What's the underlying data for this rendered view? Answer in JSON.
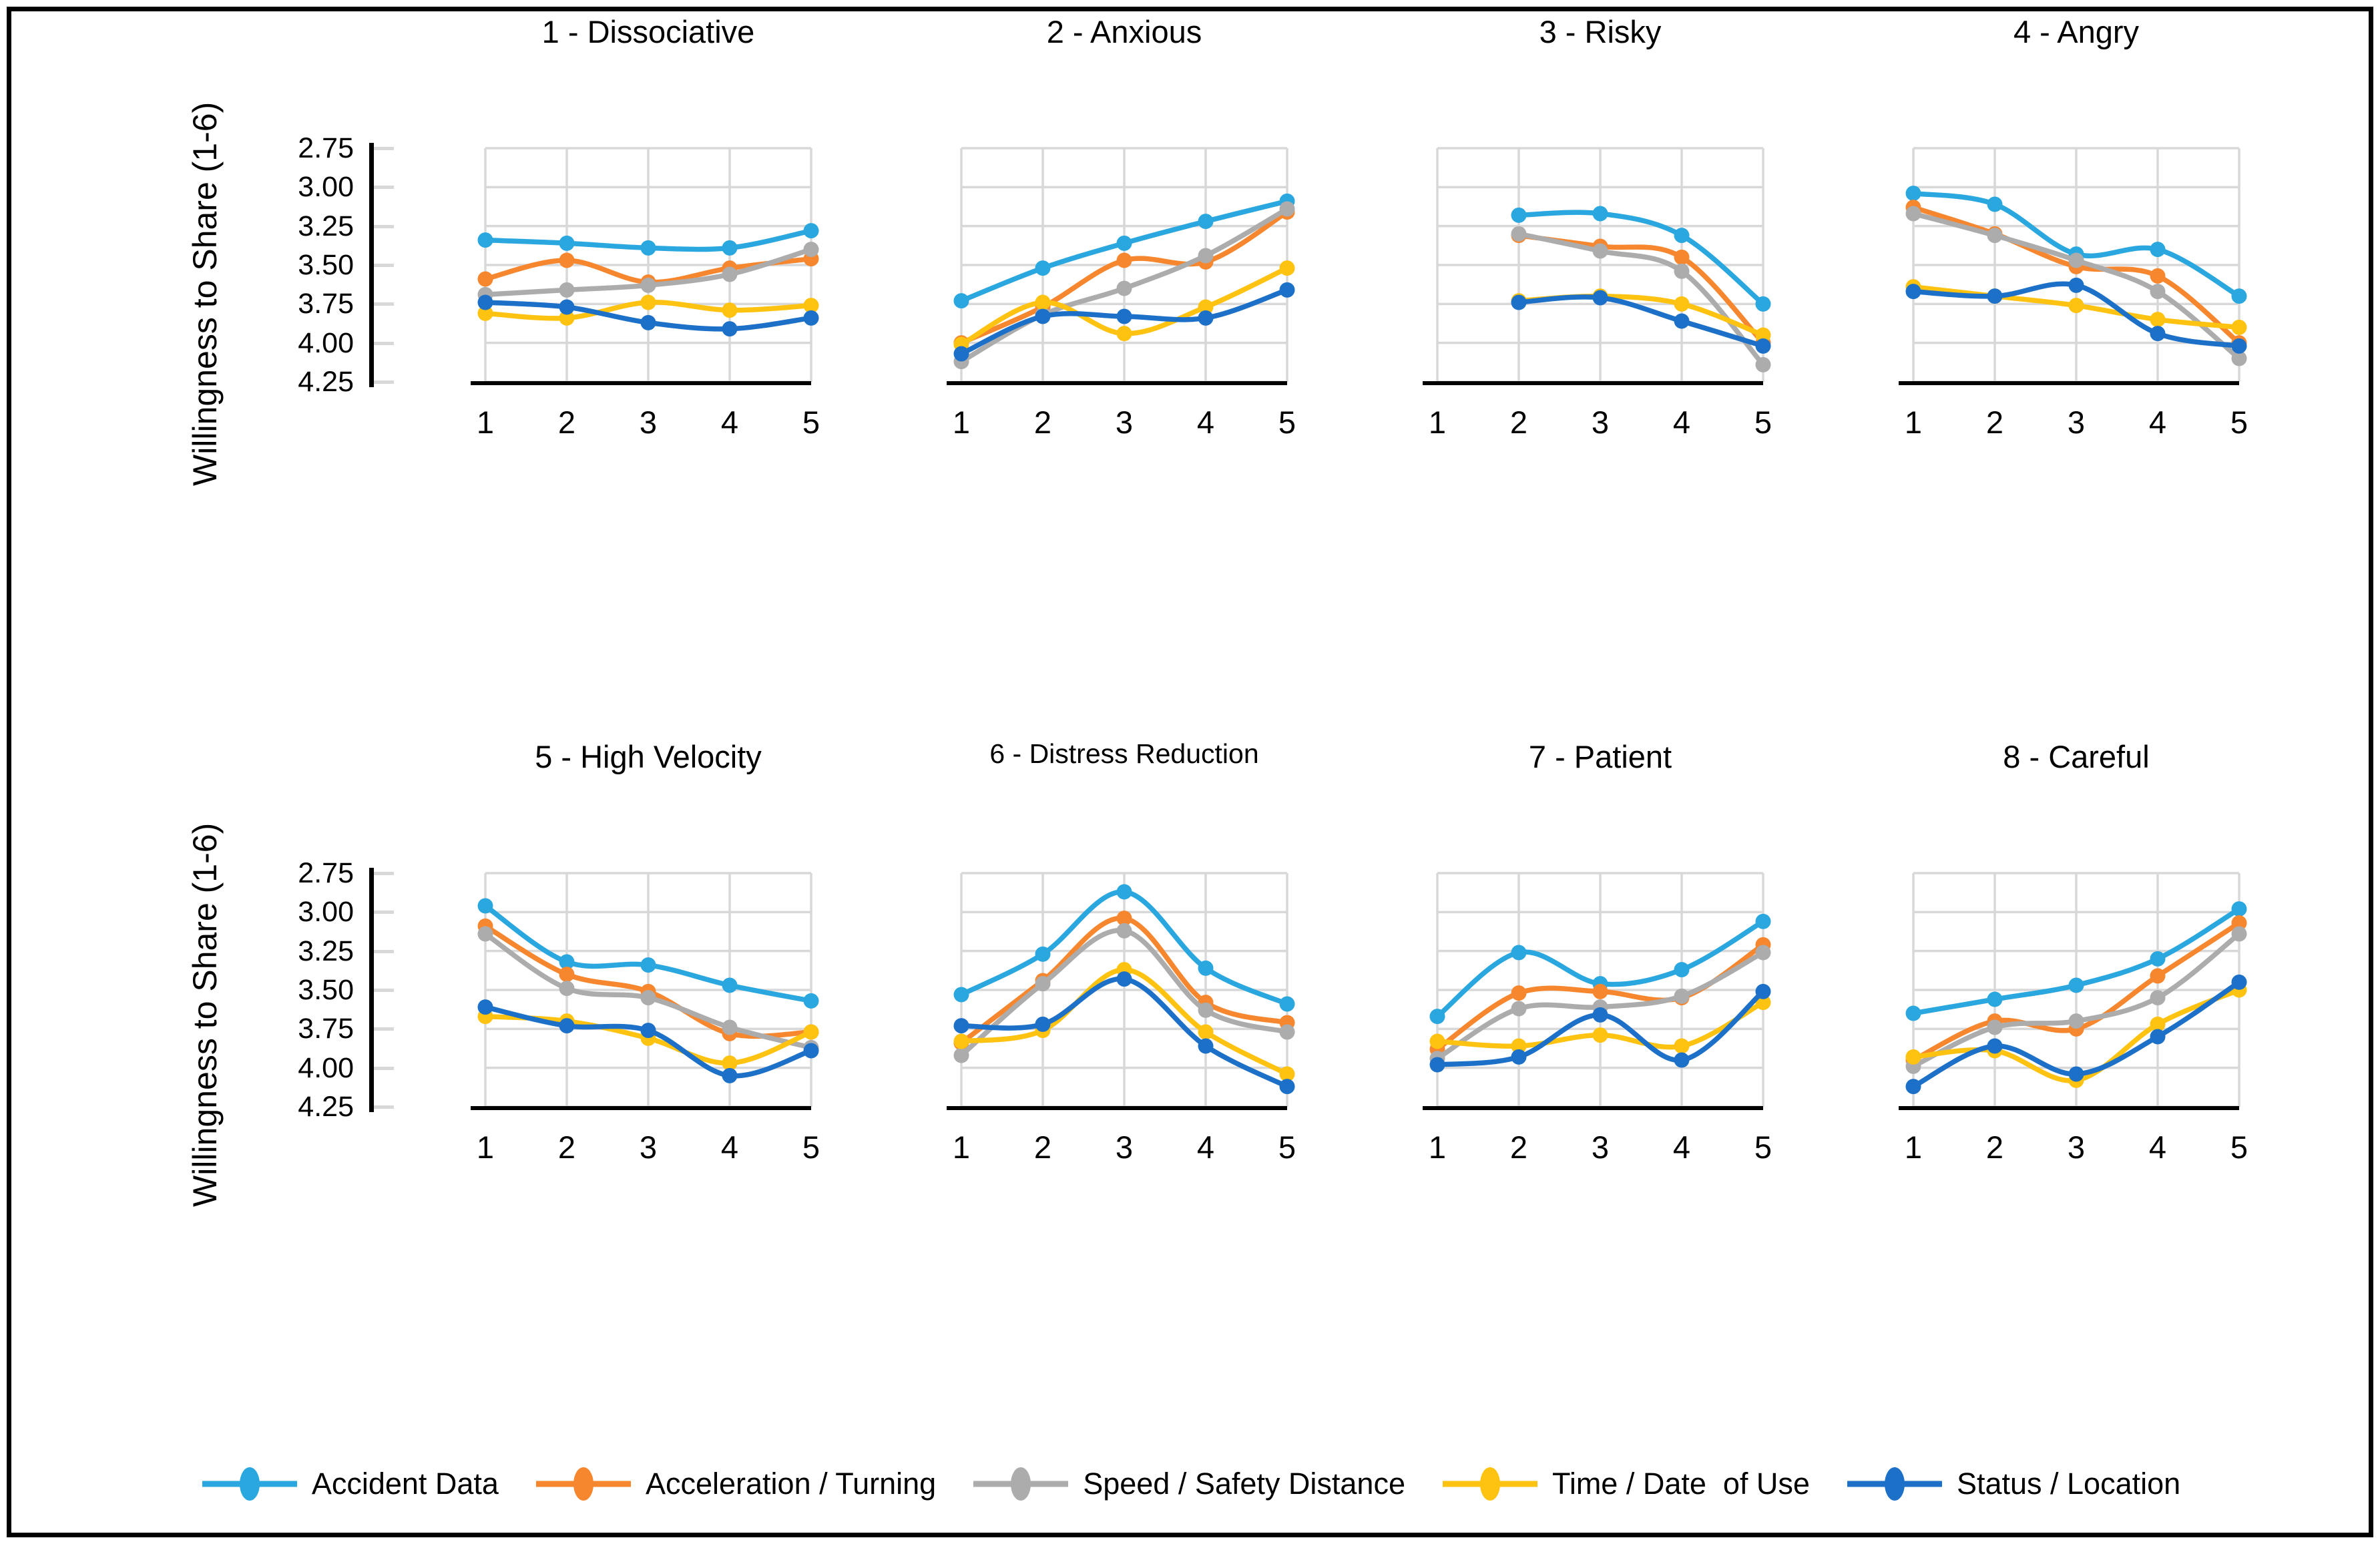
{
  "figure": {
    "border_color": "#000000",
    "background": "#ffffff"
  },
  "chart_data": {
    "type": "line",
    "categories": [
      "1",
      "2",
      "3",
      "4",
      "5"
    ],
    "ylabel": "Willingness to Share (1-6)",
    "ylim": [
      2.75,
      4.25
    ],
    "y_axis_reversed": true,
    "y_ticks": [
      "2.75",
      "3.00",
      "3.25",
      "3.50",
      "3.75",
      "4.00",
      "4.25"
    ],
    "grid": true,
    "legend_position": "bottom",
    "line_smoothing": true,
    "grid_color": "#d8d8d8",
    "axis_color": "#000000",
    "series_meta": [
      {
        "name": "Accident Data",
        "color": "#2BA7DF"
      },
      {
        "name": "Acceleration / Turning",
        "color": "#F6872E"
      },
      {
        "name": "Speed / Safety Distance",
        "color": "#ACACAC"
      },
      {
        "name": "Time / Date  of Use",
        "color": "#FEC211"
      },
      {
        "name": "Status / Location",
        "color": "#1C70C8"
      }
    ],
    "panels": [
      {
        "title": "1 - Dissociative",
        "series": [
          {
            "name": "Accident Data",
            "values": [
              3.34,
              3.36,
              3.39,
              3.39,
              3.28
            ]
          },
          {
            "name": "Acceleration / Turning",
            "values": [
              3.59,
              3.47,
              3.61,
              3.52,
              3.46
            ]
          },
          {
            "name": "Speed / Safety Distance",
            "values": [
              3.69,
              3.66,
              3.63,
              3.56,
              3.4
            ]
          },
          {
            "name": "Time / Date  of Use",
            "values": [
              3.81,
              3.84,
              3.74,
              3.79,
              3.76
            ]
          },
          {
            "name": "Status / Location",
            "values": [
              3.74,
              3.77,
              3.87,
              3.91,
              3.84
            ]
          }
        ]
      },
      {
        "title": "2 - Anxious",
        "series": [
          {
            "name": "Accident Data",
            "values": [
              3.73,
              3.52,
              3.36,
              3.22,
              3.09
            ]
          },
          {
            "name": "Acceleration / Turning",
            "values": [
              4.0,
              3.77,
              3.47,
              3.48,
              3.16
            ]
          },
          {
            "name": "Speed / Safety Distance",
            "values": [
              4.12,
              3.82,
              3.65,
              3.44,
              3.14
            ]
          },
          {
            "name": "Time / Date  of Use",
            "values": [
              4.01,
              3.74,
              3.94,
              3.77,
              3.52
            ]
          },
          {
            "name": "Status / Location",
            "values": [
              4.07,
              3.83,
              3.83,
              3.84,
              3.66
            ]
          }
        ]
      },
      {
        "title": "3 - Risky",
        "series": [
          {
            "name": "Accident Data",
            "values": [
              null,
              3.18,
              3.17,
              3.31,
              3.75
            ]
          },
          {
            "name": "Acceleration / Turning",
            "values": [
              null,
              3.31,
              3.38,
              3.45,
              4.0
            ]
          },
          {
            "name": "Speed / Safety Distance",
            "values": [
              null,
              3.3,
              3.41,
              3.54,
              4.14
            ]
          },
          {
            "name": "Time / Date  of Use",
            "values": [
              null,
              3.73,
              3.7,
              3.75,
              3.95
            ]
          },
          {
            "name": "Status / Location",
            "values": [
              null,
              3.74,
              3.71,
              3.86,
              4.02
            ]
          }
        ]
      },
      {
        "title": "4 - Angry",
        "series": [
          {
            "name": "Accident Data",
            "values": [
              3.04,
              3.11,
              3.43,
              3.4,
              3.7
            ]
          },
          {
            "name": "Acceleration / Turning",
            "values": [
              3.13,
              3.3,
              3.51,
              3.57,
              4.0
            ]
          },
          {
            "name": "Speed / Safety Distance",
            "values": [
              3.17,
              3.31,
              3.47,
              3.67,
              4.1
            ]
          },
          {
            "name": "Time / Date  of Use",
            "values": [
              3.64,
              3.7,
              3.76,
              3.85,
              3.9
            ]
          },
          {
            "name": "Status / Location",
            "values": [
              3.67,
              3.7,
              3.63,
              3.94,
              4.02
            ]
          }
        ]
      },
      {
        "title": "5 - High Velocity",
        "series": [
          {
            "name": "Accident Data",
            "values": [
              2.96,
              3.32,
              3.34,
              3.47,
              3.57
            ]
          },
          {
            "name": "Acceleration / Turning",
            "values": [
              3.09,
              3.4,
              3.51,
              3.78,
              3.77
            ]
          },
          {
            "name": "Speed / Safety Distance",
            "values": [
              3.14,
              3.49,
              3.55,
              3.74,
              3.87
            ]
          },
          {
            "name": "Time / Date  of Use",
            "values": [
              3.67,
              3.7,
              3.81,
              3.97,
              3.77
            ]
          },
          {
            "name": "Status / Location",
            "values": [
              3.61,
              3.73,
              3.76,
              4.05,
              3.89
            ]
          }
        ]
      },
      {
        "title": "6 - Distress Reduction",
        "series": [
          {
            "name": "Accident Data",
            "values": [
              3.53,
              3.27,
              2.87,
              3.36,
              3.59
            ]
          },
          {
            "name": "Acceleration / Turning",
            "values": [
              3.84,
              3.44,
              3.04,
              3.58,
              3.71
            ]
          },
          {
            "name": "Speed / Safety Distance",
            "values": [
              3.92,
              3.46,
              3.12,
              3.63,
              3.77
            ]
          },
          {
            "name": "Time / Date  of Use",
            "values": [
              3.83,
              3.76,
              3.37,
              3.77,
              4.04
            ]
          },
          {
            "name": "Status / Location",
            "values": [
              3.73,
              3.72,
              3.43,
              3.86,
              4.12
            ]
          }
        ]
      },
      {
        "title": "7 - Patient",
        "series": [
          {
            "name": "Accident Data",
            "values": [
              3.67,
              3.26,
              3.46,
              3.37,
              3.06
            ]
          },
          {
            "name": "Acceleration / Turning",
            "values": [
              3.88,
              3.52,
              3.51,
              3.55,
              3.21
            ]
          },
          {
            "name": "Speed / Safety Distance",
            "values": [
              3.94,
              3.62,
              3.61,
              3.54,
              3.26
            ]
          },
          {
            "name": "Time / Date  of Use",
            "values": [
              3.83,
              3.86,
              3.79,
              3.86,
              3.58
            ]
          },
          {
            "name": "Status / Location",
            "values": [
              3.98,
              3.93,
              3.66,
              3.95,
              3.51
            ]
          }
        ]
      },
      {
        "title": "8 - Careful",
        "series": [
          {
            "name": "Accident Data",
            "values": [
              3.65,
              3.56,
              3.47,
              3.3,
              2.98
            ]
          },
          {
            "name": "Acceleration / Turning",
            "values": [
              3.95,
              3.7,
              3.75,
              3.41,
              3.07
            ]
          },
          {
            "name": "Speed / Safety Distance",
            "values": [
              3.99,
              3.74,
              3.7,
              3.55,
              3.14
            ]
          },
          {
            "name": "Time / Date  of Use",
            "values": [
              3.93,
              3.89,
              4.08,
              3.72,
              3.5
            ]
          },
          {
            "name": "Status / Location",
            "values": [
              4.12,
              3.86,
              4.04,
              3.8,
              3.45
            ]
          }
        ]
      }
    ]
  }
}
